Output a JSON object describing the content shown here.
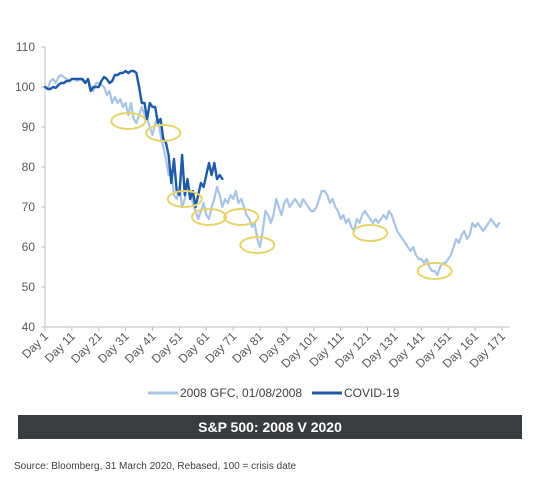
{
  "chart_data": {
    "type": "line",
    "title": "S&P 500: 2008 V 2020",
    "xlabel": "",
    "ylabel": "",
    "ylim": [
      40,
      110
    ],
    "yticks": [
      40,
      50,
      60,
      70,
      80,
      90,
      100,
      110
    ],
    "xlim": [
      1,
      174
    ],
    "xtick_labels": [
      "Day 1",
      "Day 11",
      "Day 21",
      "Day 31",
      "Day 41",
      "Day 51",
      "Day 61",
      "Day 71",
      "Day 81",
      "Day 91",
      "Day 101",
      "Day 111",
      "Day 121",
      "Day 131",
      "Day 141",
      "Day 151",
      "Day 161",
      "Day 171"
    ],
    "xtick_days": [
      1,
      11,
      21,
      31,
      41,
      51,
      61,
      71,
      81,
      91,
      101,
      111,
      121,
      131,
      141,
      151,
      161,
      171
    ],
    "grid": false,
    "legend_position": "bottom",
    "colors": {
      "gfc": "#a9c4e6",
      "covid": "#1f5aa6",
      "highlight": "#e6d36a",
      "axis": "#bfbfbf"
    },
    "series": [
      {
        "name": "2008 GFC, 01/08/2008",
        "points": [
          [
            1,
            100
          ],
          [
            2,
            99.5
          ],
          [
            3,
            101.5
          ],
          [
            4,
            102
          ],
          [
            5,
            101
          ],
          [
            6,
            102.5
          ],
          [
            7,
            103
          ],
          [
            8,
            102.5
          ],
          [
            9,
            102
          ],
          [
            10,
            101.5
          ],
          [
            11,
            102
          ],
          [
            12,
            102
          ],
          [
            13,
            101.5
          ],
          [
            14,
            102
          ],
          [
            15,
            101.5
          ],
          [
            16,
            101
          ],
          [
            17,
            102
          ],
          [
            18,
            100
          ],
          [
            19,
            99
          ],
          [
            20,
            101
          ],
          [
            21,
            101
          ],
          [
            22,
            100.5
          ],
          [
            23,
            100
          ],
          [
            24,
            98
          ],
          [
            25,
            99
          ],
          [
            26,
            96
          ],
          [
            27,
            97.5
          ],
          [
            28,
            96
          ],
          [
            29,
            97
          ],
          [
            30,
            95
          ],
          [
            31,
            96
          ],
          [
            32,
            93
          ],
          [
            33,
            96
          ],
          [
            34,
            92
          ],
          [
            35,
            91
          ],
          [
            36,
            93
          ],
          [
            37,
            95
          ],
          [
            38,
            93
          ],
          [
            39,
            92
          ],
          [
            40,
            90
          ],
          [
            41,
            88
          ],
          [
            42,
            91
          ],
          [
            43,
            92
          ],
          [
            44,
            88
          ],
          [
            45,
            85
          ],
          [
            46,
            82
          ],
          [
            47,
            78
          ],
          [
            48,
            79
          ],
          [
            49,
            73
          ],
          [
            50,
            72
          ],
          [
            51,
            75
          ],
          [
            52,
            70
          ],
          [
            53,
            72
          ],
          [
            54,
            76
          ],
          [
            55,
            74
          ],
          [
            56,
            71
          ],
          [
            57,
            69
          ],
          [
            58,
            67
          ],
          [
            59,
            69
          ],
          [
            60,
            71
          ],
          [
            61,
            68
          ],
          [
            62,
            67
          ],
          [
            63,
            70
          ],
          [
            64,
            72
          ],
          [
            65,
            75
          ],
          [
            66,
            73
          ],
          [
            67,
            70
          ],
          [
            68,
            72
          ],
          [
            69,
            71
          ],
          [
            70,
            73
          ],
          [
            71,
            72
          ],
          [
            72,
            74
          ],
          [
            73,
            71
          ],
          [
            74,
            72
          ],
          [
            75,
            70
          ],
          [
            76,
            68
          ],
          [
            77,
            67
          ],
          [
            78,
            65
          ],
          [
            79,
            66
          ],
          [
            80,
            62
          ],
          [
            81,
            60
          ],
          [
            82,
            64
          ],
          [
            83,
            69
          ],
          [
            84,
            68
          ],
          [
            85,
            66
          ],
          [
            86,
            68
          ],
          [
            87,
            72
          ],
          [
            88,
            70
          ],
          [
            89,
            68
          ],
          [
            90,
            71
          ],
          [
            91,
            72
          ],
          [
            92,
            70
          ],
          [
            93,
            71
          ],
          [
            94,
            72
          ],
          [
            95,
            71
          ],
          [
            96,
            70
          ],
          [
            97,
            72
          ],
          [
            98,
            71
          ],
          [
            99,
            70
          ],
          [
            100,
            69
          ],
          [
            101,
            69
          ],
          [
            102,
            70
          ],
          [
            103,
            72
          ],
          [
            104,
            74
          ],
          [
            105,
            74
          ],
          [
            106,
            73
          ],
          [
            107,
            71
          ],
          [
            108,
            72
          ],
          [
            109,
            70
          ],
          [
            110,
            69
          ],
          [
            111,
            67
          ],
          [
            112,
            68
          ],
          [
            113,
            66
          ],
          [
            114,
            67
          ],
          [
            115,
            65
          ],
          [
            116,
            64
          ],
          [
            117,
            67
          ],
          [
            118,
            66
          ],
          [
            119,
            68
          ],
          [
            120,
            69
          ],
          [
            121,
            68
          ],
          [
            122,
            67
          ],
          [
            123,
            66
          ],
          [
            124,
            67
          ],
          [
            125,
            66
          ],
          [
            126,
            67
          ],
          [
            127,
            68
          ],
          [
            128,
            67
          ],
          [
            129,
            69
          ],
          [
            130,
            68
          ],
          [
            131,
            66
          ],
          [
            132,
            64
          ],
          [
            133,
            63
          ],
          [
            134,
            62
          ],
          [
            135,
            61
          ],
          [
            136,
            60
          ],
          [
            137,
            59
          ],
          [
            138,
            60
          ],
          [
            139,
            58
          ],
          [
            140,
            57
          ],
          [
            141,
            57
          ],
          [
            142,
            56
          ],
          [
            143,
            57
          ],
          [
            144,
            55
          ],
          [
            145,
            54
          ],
          [
            146,
            54
          ],
          [
            147,
            53
          ],
          [
            148,
            55
          ],
          [
            149,
            56
          ],
          [
            150,
            56
          ],
          [
            151,
            57
          ],
          [
            152,
            58
          ],
          [
            153,
            60
          ],
          [
            154,
            62
          ],
          [
            155,
            61
          ],
          [
            156,
            63
          ],
          [
            157,
            64
          ],
          [
            158,
            62
          ],
          [
            159,
            63
          ],
          [
            160,
            66
          ],
          [
            161,
            65
          ],
          [
            162,
            66
          ],
          [
            163,
            65
          ],
          [
            164,
            64
          ],
          [
            165,
            65
          ],
          [
            166,
            66
          ],
          [
            167,
            67
          ],
          [
            168,
            66
          ],
          [
            169,
            65
          ],
          [
            170,
            66
          ]
        ]
      },
      {
        "name": "COVID-19",
        "points": [
          [
            1,
            100
          ],
          [
            2,
            99.5
          ],
          [
            3,
            99.5
          ],
          [
            4,
            100
          ],
          [
            5,
            99.8
          ],
          [
            6,
            100.5
          ],
          [
            7,
            101
          ],
          [
            8,
            101
          ],
          [
            9,
            101.5
          ],
          [
            10,
            101.5
          ],
          [
            11,
            102
          ],
          [
            12,
            102
          ],
          [
            13,
            102
          ],
          [
            14,
            102
          ],
          [
            15,
            102
          ],
          [
            16,
            101
          ],
          [
            17,
            102
          ],
          [
            18,
            99
          ],
          [
            19,
            100
          ],
          [
            20,
            100
          ],
          [
            21,
            100
          ],
          [
            22,
            101.5
          ],
          [
            23,
            102.5
          ],
          [
            24,
            102
          ],
          [
            25,
            101
          ],
          [
            26,
            101.5
          ],
          [
            27,
            103
          ],
          [
            28,
            103
          ],
          [
            29,
            103.5
          ],
          [
            30,
            103.5
          ],
          [
            31,
            104
          ],
          [
            32,
            103.5
          ],
          [
            33,
            104
          ],
          [
            34,
            104
          ],
          [
            35,
            103.5
          ],
          [
            36,
            100
          ],
          [
            37,
            96
          ],
          [
            38,
            96
          ],
          [
            39,
            92
          ],
          [
            40,
            96
          ],
          [
            41,
            95
          ],
          [
            42,
            95
          ],
          [
            43,
            91
          ],
          [
            44,
            92
          ],
          [
            45,
            87
          ],
          [
            46,
            86
          ],
          [
            47,
            83
          ],
          [
            48,
            76
          ],
          [
            49,
            82
          ],
          [
            50,
            74
          ],
          [
            51,
            73
          ],
          [
            52,
            83
          ],
          [
            53,
            73
          ],
          [
            54,
            77
          ],
          [
            55,
            72
          ],
          [
            56,
            74
          ],
          [
            57,
            70
          ],
          [
            58,
            73
          ],
          [
            59,
            76
          ],
          [
            60,
            75
          ],
          [
            61,
            78
          ],
          [
            62,
            81
          ],
          [
            63,
            78
          ],
          [
            64,
            81
          ],
          [
            65,
            77
          ],
          [
            66,
            78
          ],
          [
            67,
            77
          ]
        ]
      }
    ],
    "highlights": [
      {
        "day": 32,
        "value": 91.5
      },
      {
        "day": 45,
        "value": 88.5
      },
      {
        "day": 53,
        "value": 72
      },
      {
        "day": 62,
        "value": 67.5
      },
      {
        "day": 74,
        "value": 67.5
      },
      {
        "day": 80,
        "value": 60.5
      },
      {
        "day": 122,
        "value": 63.5
      },
      {
        "day": 146,
        "value": 54
      }
    ],
    "source_note": "Source: Bloomberg, 31 March 2020, Rebased, 100 = crisis date"
  }
}
